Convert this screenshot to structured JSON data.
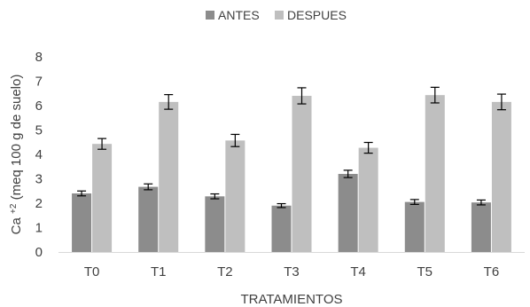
{
  "chart_data": {
    "type": "bar",
    "categories": [
      "T0",
      "T1",
      "T2",
      "T3",
      "T4",
      "T5",
      "T6"
    ],
    "series": [
      {
        "name": "ANTES",
        "color": "#8c8c8c",
        "values": [
          2.4,
          2.67,
          2.28,
          1.9,
          3.2,
          2.05,
          2.03
        ],
        "errors": [
          0.1,
          0.12,
          0.1,
          0.08,
          0.15,
          0.1,
          0.1
        ]
      },
      {
        "name": "DESPUES",
        "color": "#bfbfbf",
        "values": [
          4.43,
          6.15,
          4.57,
          6.4,
          4.27,
          6.43,
          6.15
        ],
        "errors": [
          0.22,
          0.3,
          0.25,
          0.33,
          0.22,
          0.32,
          0.32
        ]
      }
    ],
    "xlabel": "TRATAMIENTOS",
    "ylabel_base": "Ca",
    "ylabel_superscript": "+2",
    "ylabel_rest": " (meq 100 g de suelo)",
    "ylim": [
      0,
      8
    ],
    "yticks": [
      "0",
      "1",
      "2",
      "3",
      "4",
      "5",
      "6",
      "7",
      "8"
    ],
    "grid": false,
    "legend_position": "top-center"
  }
}
